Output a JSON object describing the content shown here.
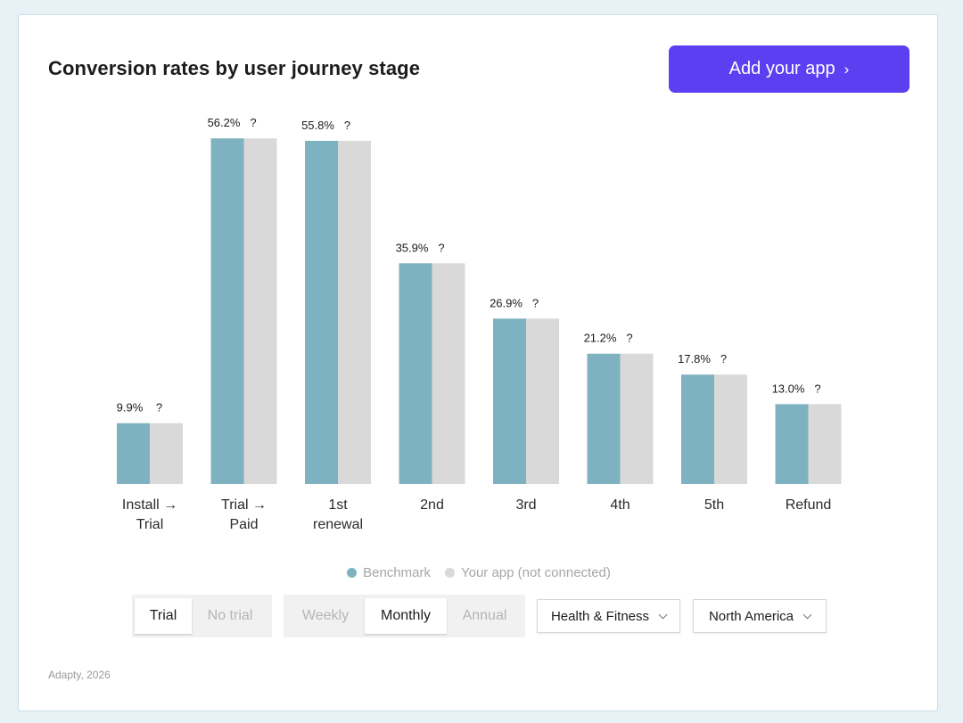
{
  "header": {
    "title": "Conversion rates by user journey stage",
    "add_button_label": "Add your app",
    "add_button_chevron": "›"
  },
  "chart_data": {
    "type": "bar",
    "title": "Conversion rates by user journey stage",
    "categories": [
      [
        "Install →",
        "Trial"
      ],
      [
        "Trial →",
        "Paid"
      ],
      [
        "1st",
        "renewal"
      ],
      [
        "2nd"
      ],
      [
        "3rd"
      ],
      [
        "4th"
      ],
      [
        "5th"
      ],
      [
        "Refund"
      ]
    ],
    "series": [
      {
        "name": "Benchmark",
        "color": "#7fb2c1",
        "values": [
          9.9,
          56.2,
          55.8,
          35.9,
          26.9,
          21.2,
          17.8,
          13.0
        ],
        "labels": [
          "9.9%",
          "56.2%",
          "55.8%",
          "35.9%",
          "26.9%",
          "21.2%",
          "17.8%",
          "13.0%"
        ]
      },
      {
        "name": "Your app (not connected)",
        "color": "#d9d9d9",
        "values": [
          9.9,
          56.2,
          55.8,
          35.9,
          26.9,
          21.2,
          17.8,
          13.0
        ],
        "labels": [
          "?",
          "?",
          "?",
          "?",
          "?",
          "?",
          "?",
          "?"
        ]
      }
    ],
    "ylim": [
      0,
      60
    ],
    "grid": false,
    "legend": "bottom-center"
  },
  "legend": {
    "benchmark": "Benchmark",
    "your_app": "Your app (not connected)",
    "benchmark_color": "#7fb2c1",
    "your_app_color": "#d9d9d9"
  },
  "controls": {
    "trial_toggle": {
      "trial": "Trial",
      "no_trial": "No trial"
    },
    "period_toggle": {
      "weekly": "Weekly",
      "monthly": "Monthly",
      "annual": "Annual"
    },
    "category_dropdown": "Health & Fitness",
    "region_dropdown": "North America"
  },
  "footer": "Adapty, 2026"
}
